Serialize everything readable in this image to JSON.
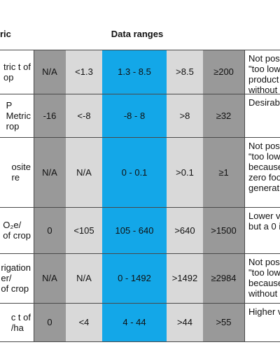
{
  "header": {
    "metric_col": "ric",
    "ranges_col": "Data ranges"
  },
  "rows": [
    {
      "metric": "tric t of\nop",
      "c1": "N/A",
      "c2": "<1.3",
      "c3": "1.3 - 8.5",
      "c4": ">8.5",
      "c5": "≥200",
      "note": "Not pos\n\"too low\nproduct\nwithout"
    },
    {
      "metric": "P\nMetric\nrop",
      "c1": "-16",
      "c2": "<-8",
      "c3": "-8 - 8",
      "c4": ">8",
      "c5": "≥32",
      "note": "Desirabl"
    },
    {
      "metric": "osite\nre",
      "c1": "N/A",
      "c2": "N/A",
      "c3": "0 - 0.1",
      "c4": ">0.1",
      "c5": "≥1",
      "note": "Not pos\n“too low\nbecause\nzero foo\ngenerati"
    },
    {
      "metric": "O₂e/\nof crop",
      "c1": "0",
      "c2": "<105",
      "c3": "105 - 640",
      "c4": ">640",
      "c5": ">1500",
      "note": "Lower v\nbut a 0 i"
    },
    {
      "metric": "rigation\ner/\nof crop",
      "c1": "N/A",
      "c2": "N/A",
      "c3": "0 - 1492",
      "c4": ">1492",
      "c5": "≥2984",
      "note": "Not pos\n\"too low\nbecause\nwithout"
    },
    {
      "metric": "c t of\n/ha",
      "c1": "0",
      "c2": "<4",
      "c3": "4 - 44",
      "c4": ">44",
      "c5": ">55",
      "note": "Higher v"
    }
  ]
}
